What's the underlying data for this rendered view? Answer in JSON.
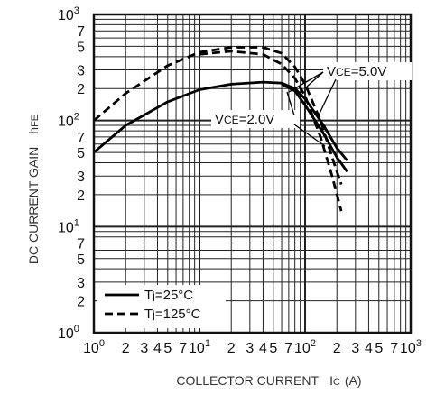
{
  "chart_data": {
    "type": "line",
    "x_scale": "log",
    "y_scale": "log",
    "xlim": [
      1,
      1000
    ],
    "ylim": [
      1,
      1000
    ],
    "xlabel": {
      "text": "COLLECTOR CURRENT",
      "symbol": "I",
      "symbol_sub": "C",
      "unit": "(A)"
    },
    "ylabel": {
      "text": "DC CURRENT GAIN",
      "symbol": "h",
      "symbol_sub": "FE"
    },
    "x_decades": [
      {
        "base": "10",
        "exp": "0"
      },
      {
        "base": "10",
        "exp": "1"
      },
      {
        "base": "10",
        "exp": "2"
      },
      {
        "base": "10",
        "exp": "3"
      }
    ],
    "x_minor_labels": [
      "2",
      "3",
      "4",
      "5",
      "7"
    ],
    "y_decades": [
      {
        "base": "10",
        "exp": "0"
      },
      {
        "base": "10",
        "exp": "1"
      },
      {
        "base": "10",
        "exp": "2"
      },
      {
        "base": "10",
        "exp": "3"
      }
    ],
    "y_minor_labels": [
      "2",
      "3",
      "5",
      "7"
    ],
    "grid": true,
    "series": [
      {
        "name": "Tj=25°C, VCE=5.0V",
        "style": "solid",
        "x": [
          1,
          2,
          5,
          10,
          20,
          40,
          60,
          80,
          100,
          150,
          200,
          250
        ],
        "y": [
          50,
          90,
          150,
          195,
          220,
          230,
          225,
          200,
          160,
          90,
          55,
          42
        ]
      },
      {
        "name": "Tj=25°C, VCE=2.0V",
        "style": "solid",
        "x": [
          60,
          80,
          100,
          150,
          200,
          250
        ],
        "y": [
          220,
          190,
          140,
          75,
          45,
          33
        ]
      },
      {
        "name": "Tj=125°C, VCE=5.0V",
        "style": "dashed",
        "x": [
          1,
          2,
          5,
          10,
          20,
          40,
          60,
          80,
          100,
          140,
          180,
          220
        ],
        "y": [
          100,
          180,
          330,
          440,
          490,
          490,
          430,
          320,
          220,
          100,
          45,
          25
        ]
      },
      {
        "name": "Tj=125°C, VCE=2.0V",
        "style": "dashed",
        "x": [
          10,
          20,
          40,
          60,
          80,
          100,
          140,
          180,
          220
        ],
        "y": [
          420,
          450,
          420,
          340,
          250,
          170,
          70,
          30,
          14
        ]
      }
    ],
    "annotations": [
      {
        "id": "vce5",
        "prefix": "V",
        "sub": "CE",
        "value": "=5.0V"
      },
      {
        "id": "vce2",
        "prefix": "V",
        "sub": "CE",
        "value": "=2.0V"
      }
    ],
    "legend": {
      "placement": "bottom-left",
      "entries": [
        {
          "style": "solid",
          "prefix": "T",
          "sub": "j",
          "value": "=25°C"
        },
        {
          "style": "dashed",
          "prefix": "T",
          "sub": "j",
          "value": "=125°C"
        }
      ]
    }
  }
}
